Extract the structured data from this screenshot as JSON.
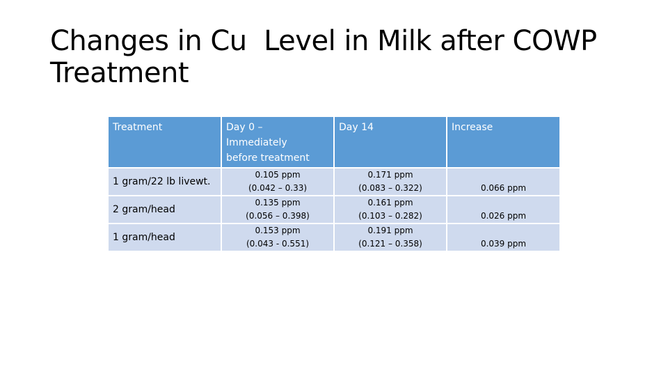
{
  "title": {
    "line1": "Changes in Cu  Level in Milk after COWP",
    "line2": "Treatment"
  },
  "table": {
    "headers": [
      "Treatment",
      "Day 0 –\nImmediately\nbefore treatment",
      "Day 14",
      "Increase"
    ],
    "header_lines": {
      "treatment": "Treatment",
      "day0": [
        "Day 0 –",
        "Immediately",
        "before treatment"
      ],
      "day14": "Day 14",
      "increase": "Increase"
    },
    "rows": [
      {
        "treatment": "1 gram/22 lb livewt.",
        "day0_value": "0.105 ppm",
        "day0_range": "(0.042 – 0.33)",
        "day14_value": "0.171 ppm",
        "day14_range": "(0.083 – 0.322)",
        "increase": "0.066 ppm"
      },
      {
        "treatment": "2 gram/head",
        "day0_value": "0.135 ppm",
        "day0_range": "(0.056 – 0.398)",
        "day14_value": "0.161 ppm",
        "day14_range": "(0.103 – 0.282)",
        "increase": "0.026 ppm"
      },
      {
        "treatment": "1 gram/head",
        "day0_value": "0.153 ppm",
        "day0_range": "(0.043 - 0.551)",
        "day14_value": "0.191 ppm",
        "day14_range": "(0.121 – 0.358)",
        "increase": "0.039 ppm"
      }
    ]
  },
  "colors": {
    "header_bg": "#5b9bd5",
    "row_bg": "#cfdaee"
  }
}
